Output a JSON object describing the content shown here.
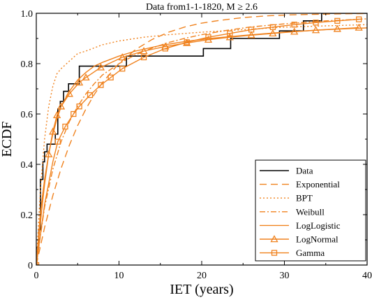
{
  "chart_data": {
    "type": "line",
    "title": "Data from1-1-1820, M ≥ 2.6",
    "xlabel": "IET (years)",
    "ylabel": "ECDF",
    "xlim": [
      0,
      40
    ],
    "ylim": [
      0,
      1
    ],
    "xticks": [
      "0",
      "10",
      "20",
      "30",
      "40"
    ],
    "yticks": [
      "0",
      "0.2",
      "0.4",
      "0.6",
      "0.8",
      "1.0"
    ],
    "grid": false,
    "legend_position": "bottom-right",
    "series": [
      {
        "name": "Data",
        "style": "step",
        "color": "#000000",
        "dash": "solid",
        "marker": "none",
        "x": [
          0,
          0.3,
          0.5,
          0.8,
          1.0,
          1.3,
          1.7,
          2.3,
          2.6,
          2.9,
          3.3,
          3.9,
          4.6,
          5.2,
          6.6,
          7.4,
          7.9,
          10.9,
          20.2,
          23.5,
          29.4,
          32.3,
          34.5,
          40
        ],
        "y": [
          0.07,
          0.14,
          0.34,
          0.41,
          0.45,
          0.48,
          0.48,
          0.52,
          0.62,
          0.65,
          0.69,
          0.72,
          0.72,
          0.79,
          0.79,
          0.79,
          0.79,
          0.83,
          0.86,
          0.9,
          0.93,
          0.97,
          1.0,
          1.0
        ]
      },
      {
        "name": "Exponential",
        "style": "line",
        "color": "#F0821E",
        "dash": "long",
        "marker": "none",
        "x": [
          0,
          1,
          2,
          3,
          4,
          5,
          6,
          7,
          8,
          10,
          12,
          14,
          16,
          18,
          20,
          22,
          25,
          28,
          31,
          34,
          37,
          40
        ],
        "y": [
          0,
          0.149,
          0.276,
          0.384,
          0.476,
          0.554,
          0.62,
          0.677,
          0.725,
          0.801,
          0.856,
          0.896,
          0.925,
          0.946,
          0.961,
          0.971,
          0.983,
          0.99,
          0.994,
          0.996,
          0.998,
          0.999
        ]
      },
      {
        "name": "BPT",
        "style": "line",
        "color": "#F0821E",
        "dash": "dot",
        "marker": "none",
        "x": [
          0,
          0.5,
          1,
          1.5,
          2,
          2.5,
          3,
          4,
          5,
          6,
          8,
          10,
          13,
          16,
          20,
          25,
          30,
          35,
          40
        ],
        "y": [
          0,
          0.3,
          0.5,
          0.63,
          0.71,
          0.76,
          0.78,
          0.81,
          0.84,
          0.85,
          0.875,
          0.89,
          0.905,
          0.915,
          0.925,
          0.935,
          0.945,
          0.95,
          0.955
        ]
      },
      {
        "name": "Weibull",
        "style": "line",
        "color": "#F0821E",
        "dash": "dashdot",
        "marker": "none",
        "x": [
          0,
          1,
          2,
          3,
          4,
          5,
          6,
          7,
          8,
          10,
          12,
          14,
          16,
          18,
          20,
          23,
          26,
          30,
          35,
          40
        ],
        "y": [
          0,
          0.23,
          0.38,
          0.49,
          0.57,
          0.63,
          0.68,
          0.72,
          0.755,
          0.8,
          0.835,
          0.862,
          0.884,
          0.901,
          0.915,
          0.932,
          0.946,
          0.958,
          0.97,
          0.978
        ]
      },
      {
        "name": "LogLogistic",
        "style": "line",
        "color": "#F0821E",
        "dash": "solid",
        "marker": "none",
        "x": [
          0,
          0.5,
          1,
          1.5,
          2,
          2.5,
          3,
          4,
          5,
          6,
          7,
          8,
          10,
          12,
          15,
          18,
          21,
          25,
          30,
          35,
          40
        ],
        "y": [
          0,
          0.21,
          0.34,
          0.44,
          0.52,
          0.58,
          0.63,
          0.69,
          0.735,
          0.765,
          0.79,
          0.805,
          0.83,
          0.85,
          0.872,
          0.888,
          0.9,
          0.912,
          0.925,
          0.935,
          0.942
        ]
      },
      {
        "name": "LogNormal",
        "style": "line",
        "color": "#F0821E",
        "dash": "solid",
        "marker": "triangle",
        "x": [
          0,
          0.5,
          1,
          1.5,
          2,
          2.5,
          3,
          4,
          5.2,
          6,
          7.8,
          10.4,
          13,
          15.6,
          18.2,
          20.8,
          23.4,
          26,
          28.6,
          31.2,
          33.8,
          36.4,
          39
        ],
        "y": [
          0,
          0.17,
          0.32,
          0.44,
          0.53,
          0.595,
          0.63,
          0.68,
          0.725,
          0.745,
          0.785,
          0.825,
          0.85,
          0.868,
          0.882,
          0.895,
          0.905,
          0.913,
          0.92,
          0.927,
          0.933,
          0.938,
          0.943
        ]
      },
      {
        "name": "Gamma",
        "style": "line",
        "color": "#F0821E",
        "dash": "solid",
        "marker": "square",
        "x": [
          0,
          1,
          2,
          2.6,
          3.5,
          4.5,
          5.2,
          6.5,
          7.8,
          9,
          10.4,
          13,
          15.6,
          18.2,
          20.8,
          23.4,
          26,
          28.6,
          31.2,
          33.8,
          36.4,
          39
        ],
        "y": [
          0,
          0.24,
          0.41,
          0.49,
          0.55,
          0.6,
          0.63,
          0.675,
          0.715,
          0.745,
          0.78,
          0.825,
          0.86,
          0.885,
          0.905,
          0.92,
          0.935,
          0.945,
          0.955,
          0.963,
          0.97,
          0.976
        ]
      }
    ]
  }
}
